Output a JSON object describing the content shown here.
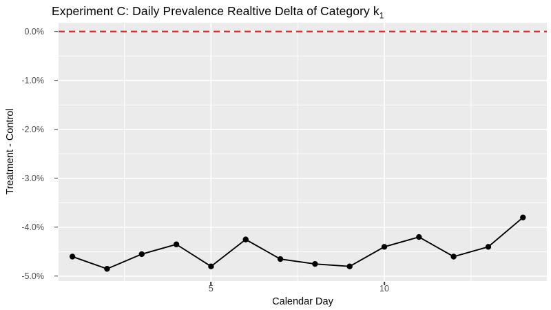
{
  "title": {
    "text": "Experiment C: Daily Prevalence Realtive Delta of Category k",
    "subscript": "1"
  },
  "chart_data": {
    "type": "line",
    "title": "Experiment C: Daily Prevalence Realtive Delta of Category k1",
    "xlabel": "Calendar Day",
    "ylabel": "Treatment - Control",
    "x": [
      1,
      2,
      3,
      4,
      5,
      6,
      7,
      8,
      9,
      10,
      11,
      12,
      13,
      14
    ],
    "series": [
      {
        "name": "daily_prevalence_relative_delta",
        "values": [
          -4.6,
          -4.85,
          -4.55,
          -4.35,
          -4.8,
          -4.25,
          -4.65,
          -4.75,
          -4.8,
          -4.4,
          -4.2,
          -4.6,
          -4.4,
          -3.8
        ]
      }
    ],
    "x_axis": {
      "tick_values": [
        5,
        10
      ],
      "tick_labels": [
        "5",
        "10"
      ],
      "minor_gridlines": [
        2.5,
        7.5,
        12.5
      ],
      "range": [
        0.6,
        14.69
      ]
    },
    "y_axis": {
      "tick_values": [
        0,
        -1,
        -2,
        -3,
        -4,
        -5
      ],
      "tick_labels": [
        "0.0%",
        "-1.0%",
        "-2.0%",
        "-3.0%",
        "-4.0%",
        "-5.0%"
      ],
      "minor_gridlines": [
        -0.5,
        -1.5,
        -2.5,
        -3.5,
        -4.5
      ],
      "range": [
        -5.1,
        0.18
      ]
    },
    "ref_line": {
      "y": 0,
      "style": "dashed",
      "color": "#dc2a2a"
    },
    "legend": "none",
    "grid": "on",
    "colors": {
      "panel_background": "#ebebeb",
      "gridline": "#ffffff",
      "series_line": "#000000",
      "point": "#000000",
      "tick_text": "#4d4d4d",
      "axis_title_text": "#000000"
    }
  }
}
